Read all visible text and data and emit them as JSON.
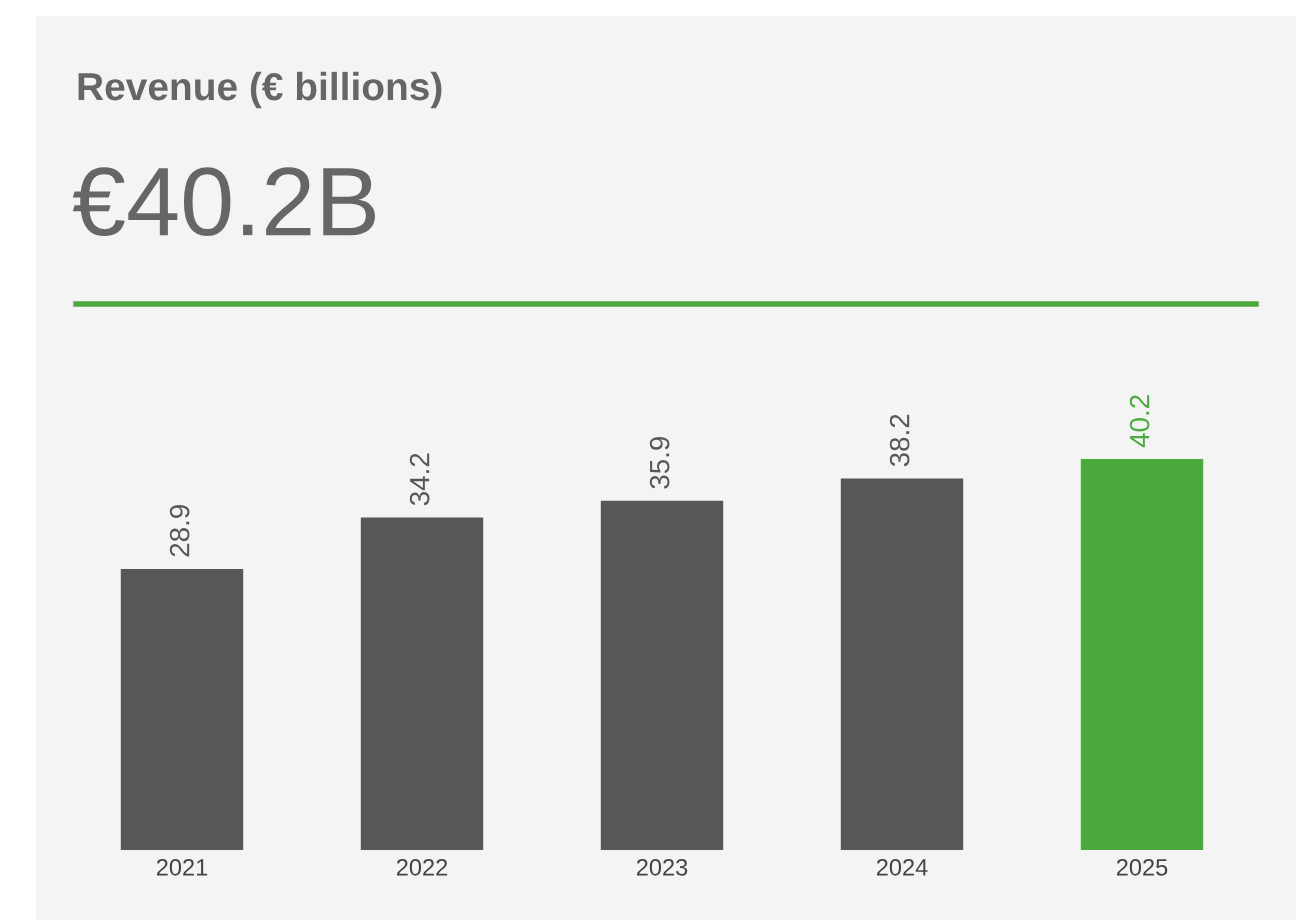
{
  "chart_data": {
    "type": "bar",
    "title": "Revenue (€ billions)",
    "subtitle": "€40.2B",
    "categories": [
      "2021",
      "2022",
      "2023",
      "2024",
      "2025"
    ],
    "values": [
      28.9,
      34.2,
      35.9,
      38.2,
      40.2
    ],
    "colors": [
      "#575756",
      "#575756",
      "#575756",
      "#575756",
      "#4aaa3d"
    ],
    "data_labels": true,
    "grid": false,
    "legend": false
  }
}
